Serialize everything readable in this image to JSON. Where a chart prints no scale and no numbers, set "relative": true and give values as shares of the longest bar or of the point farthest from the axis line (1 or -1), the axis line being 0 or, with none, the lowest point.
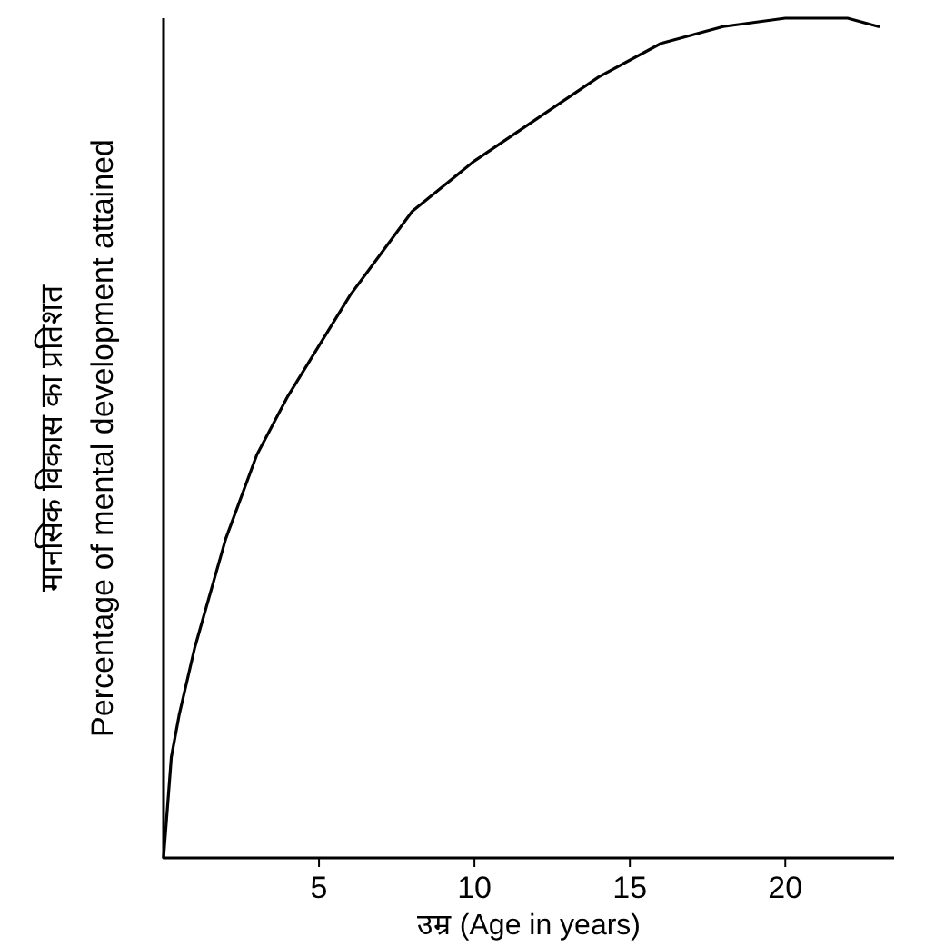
{
  "chart_data": {
    "type": "line",
    "relative": true,
    "xlabel": "उम्र (Age in years)",
    "ylabel": "मानसिक विकास का प्रतिशत\nPercentage of mental development attained",
    "xlim": [
      0,
      23.5
    ],
    "xticks": [
      5,
      10,
      15,
      20
    ],
    "series": [
      {
        "color": "#000000",
        "x": [
          0,
          0.25,
          0.5,
          1,
          2,
          3,
          4,
          5,
          6,
          7,
          8,
          9,
          10,
          12,
          14,
          16,
          18,
          20,
          22,
          23
        ],
        "values": [
          0,
          0.12,
          0.17,
          0.25,
          0.38,
          0.48,
          0.55,
          0.61,
          0.67,
          0.72,
          0.77,
          0.8,
          0.83,
          0.88,
          0.93,
          0.97,
          0.99,
          1,
          1,
          0.99
        ]
      }
    ]
  }
}
